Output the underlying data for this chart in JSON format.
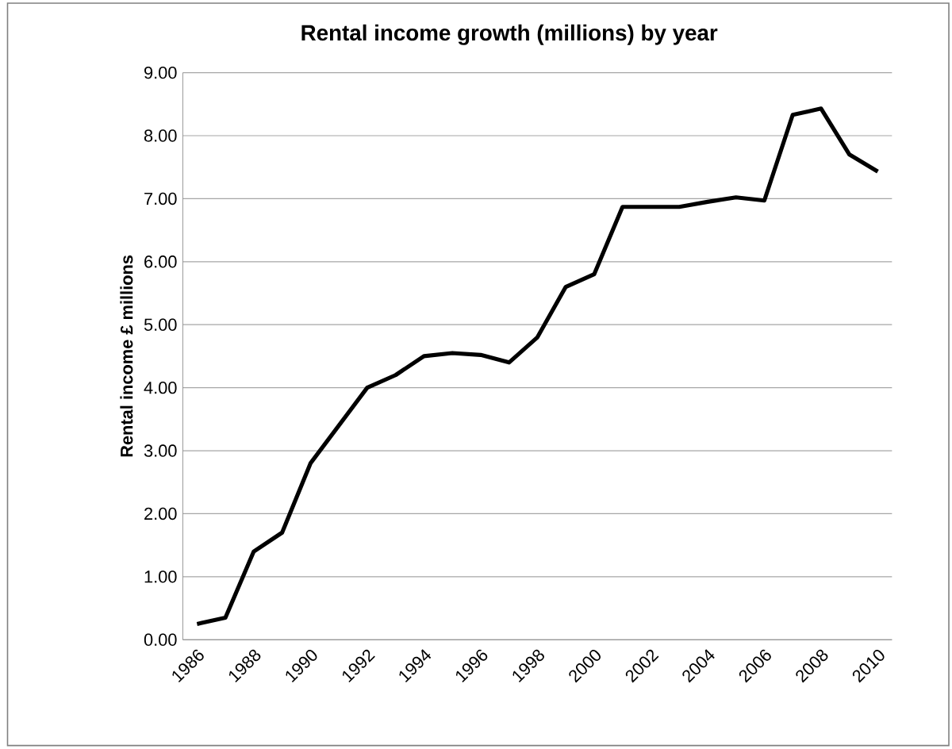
{
  "chart_data": {
    "type": "line",
    "title": "Rental income growth (millions) by year",
    "ylabel": "Rental income £ millions",
    "categories": [
      "1986",
      null,
      "1988",
      null,
      "1990",
      null,
      "1992",
      null,
      "1994",
      null,
      "1996",
      null,
      "1998",
      null,
      "2000",
      null,
      "2002",
      null,
      "2004",
      null,
      "2006",
      null,
      "2008",
      null,
      "2010"
    ],
    "series": [
      {
        "color": "#000000",
        "values": [
          0.25,
          0.35,
          1.4,
          1.7,
          2.8,
          3.4,
          4.0,
          4.2,
          4.5,
          4.55,
          4.52,
          4.4,
          4.8,
          5.6,
          5.8,
          6.87,
          6.87,
          6.87,
          6.95,
          7.02,
          6.97,
          8.33,
          8.43,
          7.7,
          7.43
        ]
      }
    ],
    "ylim": [
      0,
      9
    ],
    "yticks": [
      {
        "value": 0,
        "label": "0.00"
      },
      {
        "value": 1,
        "label": "1.00"
      },
      {
        "value": 2,
        "label": "2.00"
      },
      {
        "value": 3,
        "label": "3.00"
      },
      {
        "value": 4,
        "label": "4.00"
      },
      {
        "value": 5,
        "label": "5.00"
      },
      {
        "value": 6,
        "label": "6.00"
      },
      {
        "value": 7,
        "label": "7.00"
      },
      {
        "value": 8,
        "label": "8.00"
      },
      {
        "value": 9,
        "label": "9.00"
      }
    ],
    "grid": "y",
    "marker": "none",
    "line_style": "solid"
  }
}
